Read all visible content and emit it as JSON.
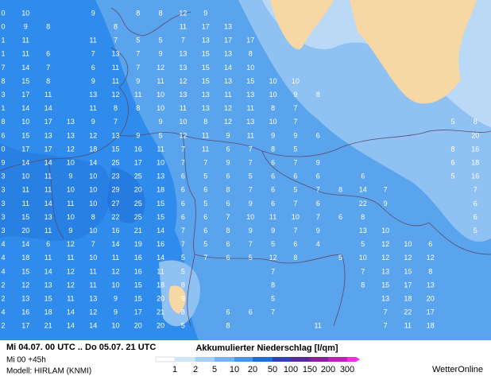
{
  "header": {
    "period": "Mi 04.07. 00 UTC .. Do 05.07. 21 UTC",
    "run": "Mi 00 +45h",
    "model": "Modell: HIRLAM (KNMI)",
    "title": "Akkumulierter Niederschlag [l/qm]",
    "brand": "WetterOnline"
  },
  "legend": {
    "labels": [
      1,
      2,
      5,
      10,
      20,
      50,
      100,
      150,
      200,
      300
    ]
  },
  "map": {
    "rows": [
      [
        0,
        10,
        null,
        null,
        9,
        null,
        8,
        8,
        12,
        9,
        null,
        null,
        null,
        null,
        null,
        null,
        null,
        null,
        null,
        null,
        null,
        null
      ],
      [
        0,
        9,
        8,
        null,
        null,
        8,
        null,
        null,
        11,
        17,
        13,
        null,
        null,
        null,
        null,
        null,
        null,
        null,
        null,
        null,
        null,
        null
      ],
      [
        1,
        11,
        null,
        null,
        11,
        7,
        5,
        5,
        7,
        13,
        17,
        17,
        null,
        null,
        null,
        null,
        null,
        null,
        null,
        null,
        null,
        null
      ],
      [
        1,
        11,
        6,
        null,
        7,
        13,
        7,
        9,
        13,
        15,
        13,
        8,
        null,
        null,
        null,
        null,
        null,
        null,
        null,
        null,
        null,
        null
      ],
      [
        7,
        14,
        7,
        null,
        6,
        11,
        7,
        12,
        13,
        15,
        14,
        10,
        null,
        null,
        null,
        null,
        null,
        null,
        null,
        null,
        null,
        null
      ],
      [
        8,
        15,
        8,
        null,
        9,
        11,
        9,
        11,
        12,
        15,
        13,
        15,
        10,
        10,
        null,
        null,
        null,
        null,
        null,
        null,
        null,
        null
      ],
      [
        3,
        17,
        11,
        null,
        13,
        12,
        11,
        10,
        13,
        13,
        11,
        13,
        10,
        9,
        8,
        null,
        null,
        null,
        null,
        null,
        null,
        null
      ],
      [
        1,
        14,
        14,
        null,
        11,
        8,
        8,
        10,
        11,
        13,
        12,
        11,
        8,
        7,
        null,
        null,
        null,
        null,
        null,
        null,
        null,
        null
      ],
      [
        8,
        10,
        17,
        13,
        9,
        7,
        null,
        9,
        10,
        8,
        12,
        13,
        10,
        7,
        null,
        null,
        null,
        null,
        null,
        null,
        5,
        8
      ],
      [
        6,
        15,
        13,
        13,
        12,
        13,
        9,
        5,
        12,
        11,
        9,
        11,
        9,
        9,
        6,
        null,
        null,
        null,
        null,
        null,
        null,
        20
      ],
      [
        0,
        17,
        17,
        12,
        18,
        15,
        16,
        11,
        7,
        11,
        6,
        7,
        8,
        5,
        null,
        null,
        null,
        null,
        null,
        null,
        8,
        16
      ],
      [
        9,
        14,
        14,
        10,
        14,
        25,
        17,
        10,
        7,
        7,
        9,
        7,
        6,
        7,
        9,
        null,
        null,
        null,
        null,
        null,
        6,
        18
      ],
      [
        3,
        10,
        11,
        9,
        10,
        23,
        25,
        13,
        6,
        5,
        6,
        5,
        6,
        6,
        6,
        null,
        6,
        null,
        null,
        null,
        5,
        16
      ],
      [
        3,
        11,
        11,
        10,
        10,
        29,
        20,
        18,
        6,
        6,
        8,
        7,
        6,
        5,
        7,
        8,
        14,
        7,
        null,
        null,
        null,
        7
      ],
      [
        3,
        11,
        14,
        11,
        10,
        27,
        25,
        15,
        6,
        5,
        6,
        9,
        6,
        7,
        6,
        null,
        22,
        9,
        null,
        null,
        null,
        6
      ],
      [
        3,
        15,
        13,
        10,
        8,
        22,
        25,
        15,
        6,
        6,
        7,
        10,
        11,
        10,
        7,
        6,
        8,
        null,
        null,
        null,
        null,
        6
      ],
      [
        3,
        20,
        11,
        9,
        10,
        16,
        21,
        14,
        7,
        6,
        8,
        9,
        9,
        7,
        9,
        null,
        13,
        10,
        null,
        null,
        null,
        5
      ],
      [
        4,
        14,
        6,
        12,
        7,
        14,
        19,
        16,
        7,
        5,
        6,
        7,
        5,
        6,
        4,
        null,
        5,
        12,
        10,
        6,
        null,
        null
      ],
      [
        4,
        18,
        11,
        11,
        10,
        11,
        16,
        14,
        5,
        7,
        6,
        5,
        12,
        8,
        null,
        5,
        10,
        12,
        12,
        12,
        null,
        null
      ],
      [
        4,
        15,
        14,
        12,
        11,
        12,
        16,
        11,
        5,
        null,
        null,
        null,
        7,
        null,
        null,
        null,
        7,
        13,
        15,
        8,
        null,
        null
      ],
      [
        2,
        12,
        13,
        12,
        11,
        10,
        15,
        18,
        8,
        null,
        null,
        null,
        8,
        null,
        null,
        null,
        8,
        15,
        17,
        13,
        null,
        null
      ],
      [
        2,
        13,
        15,
        11,
        13,
        9,
        15,
        20,
        9,
        null,
        null,
        null,
        5,
        null,
        null,
        null,
        null,
        13,
        18,
        20,
        null,
        null
      ],
      [
        4,
        16,
        18,
        14,
        12,
        9,
        17,
        21,
        8,
        null,
        6,
        6,
        7,
        null,
        null,
        null,
        null,
        7,
        22,
        17,
        null,
        null
      ],
      [
        2,
        17,
        21,
        14,
        14,
        10,
        20,
        20,
        5,
        null,
        8,
        null,
        null,
        null,
        11,
        null,
        null,
        7,
        11,
        18,
        null,
        null
      ]
    ]
  }
}
